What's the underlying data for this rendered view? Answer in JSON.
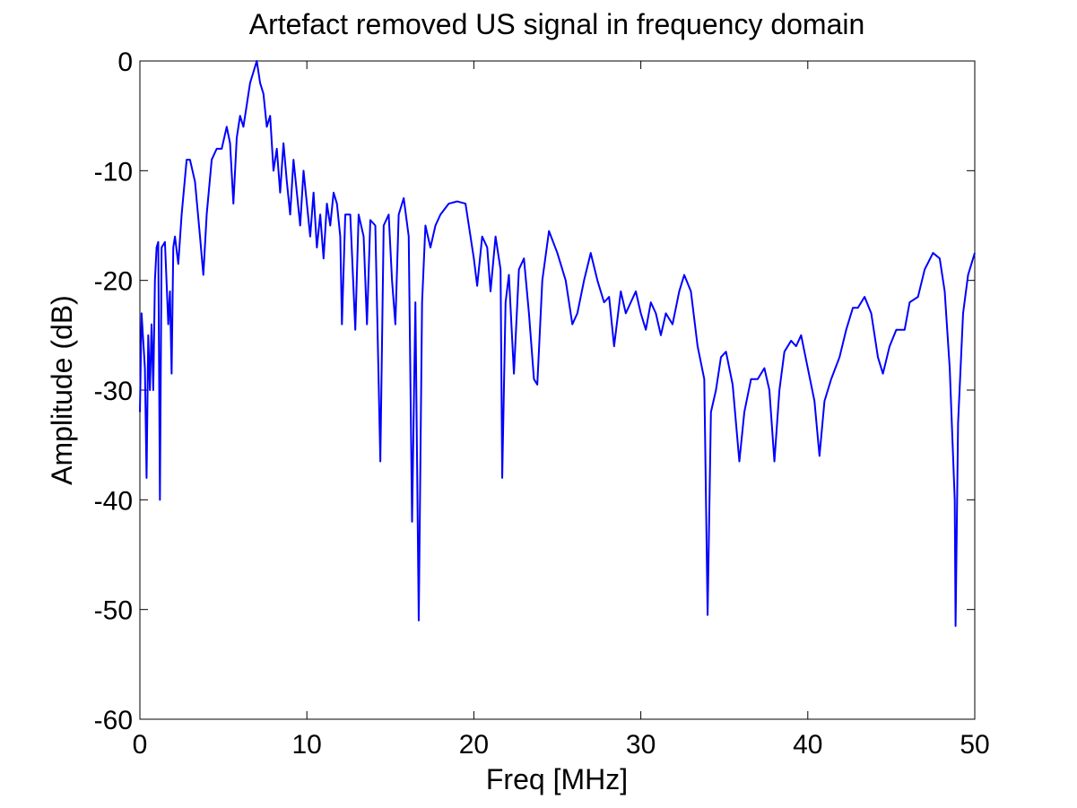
{
  "chart_data": {
    "type": "line",
    "title": "Artefact removed US signal in frequency domain",
    "x_label": "Freq [MHz]",
    "y_label": "Amplitude (dB)",
    "xlim": [
      0,
      50
    ],
    "xticks": [
      0,
      10,
      20,
      30,
      40,
      50
    ],
    "ylim": [
      -60,
      0
    ],
    "yticks": [
      -60,
      -50,
      -40,
      -30,
      -20,
      -10,
      0
    ],
    "grid": false,
    "series": [
      {
        "color": "#0000ff",
        "x": [
          0,
          0.1,
          0.3,
          0.4,
          0.5,
          0.6,
          0.7,
          0.8,
          0.9,
          1.0,
          1.1,
          1.2,
          1.3,
          1.5,
          1.7,
          1.8,
          1.9,
          2.0,
          2.1,
          2.3,
          2.5,
          2.8,
          3.0,
          3.3,
          3.6,
          3.8,
          4.0,
          4.3,
          4.6,
          4.9,
          5.2,
          5.4,
          5.6,
          5.8,
          6.0,
          6.2,
          6.4,
          6.6,
          6.8,
          7.0,
          7.2,
          7.4,
          7.6,
          7.8,
          8.0,
          8.2,
          8.4,
          8.6,
          8.8,
          9.0,
          9.2,
          9.4,
          9.6,
          9.8,
          10.0,
          10.2,
          10.4,
          10.6,
          10.8,
          11.0,
          11.2,
          11.4,
          11.6,
          11.8,
          12.0,
          12.1,
          12.3,
          12.6,
          12.9,
          13.1,
          13.4,
          13.6,
          13.8,
          14.1,
          14.4,
          14.6,
          14.9,
          15.1,
          15.3,
          15.5,
          15.8,
          16.1,
          16.3,
          16.5,
          16.7,
          16.9,
          17.1,
          17.4,
          17.7,
          18.0,
          18.5,
          19.0,
          19.5,
          20.0,
          20.2,
          20.5,
          20.8,
          21.0,
          21.3,
          21.6,
          21.7,
          21.9,
          22.1,
          22.4,
          22.7,
          23.0,
          23.3,
          23.6,
          23.8,
          24.1,
          24.5,
          25.0,
          25.5,
          25.9,
          26.2,
          26.6,
          27.0,
          27.4,
          27.8,
          28.1,
          28.4,
          28.8,
          29.1,
          29.4,
          29.7,
          30.0,
          30.3,
          30.6,
          30.9,
          31.2,
          31.5,
          31.9,
          32.3,
          32.6,
          33.0,
          33.4,
          33.8,
          34.0,
          34.2,
          34.5,
          34.8,
          35.1,
          35.5,
          35.9,
          36.2,
          36.6,
          37.0,
          37.4,
          37.7,
          38.0,
          38.3,
          38.6,
          39.0,
          39.3,
          39.6,
          40.0,
          40.4,
          40.7,
          41.0,
          41.4,
          41.9,
          42.3,
          42.7,
          43.0,
          43.4,
          43.8,
          44.2,
          44.5,
          44.9,
          45.3,
          45.8,
          46.1,
          46.6,
          47.0,
          47.5,
          47.9,
          48.2,
          48.5,
          48.8,
          48.85,
          49.0,
          49.3,
          49.6,
          50.0
        ],
        "values": [
          -32,
          -23,
          -28,
          -38,
          -25,
          -30,
          -24,
          -30,
          -20,
          -17,
          -16.5,
          -40,
          -17,
          -16.5,
          -24,
          -21,
          -28.5,
          -17,
          -16,
          -18.5,
          -14,
          -9,
          -9,
          -11,
          -16,
          -19.5,
          -14,
          -9,
          -8,
          -8,
          -6,
          -7.5,
          -13,
          -7,
          -5,
          -6,
          -4,
          -2,
          -1,
          0,
          -2,
          -3,
          -6,
          -5,
          -10,
          -8,
          -12,
          -7.5,
          -11,
          -14,
          -9,
          -12,
          -15,
          -10,
          -13,
          -16,
          -12,
          -17,
          -14,
          -18,
          -13,
          -15,
          -12,
          -13,
          -16,
          -24,
          -14,
          -14,
          -24.5,
          -14,
          -16,
          -24,
          -14.5,
          -15,
          -36.5,
          -15,
          -14,
          -20,
          -24,
          -14,
          -12.5,
          -16,
          -42,
          -22,
          -51,
          -22,
          -15,
          -17,
          -15,
          -14,
          -13,
          -12.8,
          -13,
          -18,
          -20.5,
          -16,
          -17,
          -21,
          -16,
          -19,
          -38,
          -22,
          -19.5,
          -28.5,
          -19,
          -18,
          -23,
          -29,
          -29.5,
          -20,
          -15.5,
          -17.5,
          -20,
          -24,
          -23,
          -20,
          -17.5,
          -20,
          -22,
          -21.5,
          -26,
          -21,
          -23,
          -22,
          -21,
          -23,
          -24.5,
          -22,
          -23,
          -25,
          -23,
          -24,
          -21,
          -19.5,
          -21,
          -26,
          -29,
          -50.5,
          -32,
          -30,
          -27,
          -26.5,
          -29.5,
          -36.5,
          -32,
          -29,
          -29,
          -28,
          -30,
          -36.5,
          -30,
          -26.5,
          -25.5,
          -26,
          -25,
          -28,
          -31,
          -36,
          -31,
          -29,
          -27,
          -24.5,
          -22.5,
          -22.5,
          -21.5,
          -23,
          -27,
          -28.5,
          -26,
          -24.5,
          -24.5,
          -22,
          -21.5,
          -19,
          -17.5,
          -18,
          -21,
          -28,
          -40,
          -51.5,
          -33,
          -23,
          -19.5,
          -17.5
        ]
      }
    ]
  }
}
